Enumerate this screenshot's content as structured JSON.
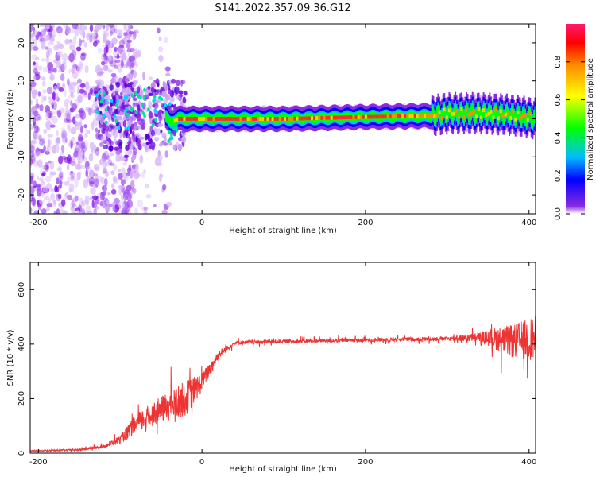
{
  "title": "S141.2022.357.09.36.G12",
  "chart_data": [
    {
      "type": "heatmap",
      "xlabel": "Height of straight line (km)",
      "ylabel": "Frequency (Hz)",
      "xlim": [
        -210,
        408
      ],
      "ylim": [
        -25,
        25
      ],
      "xticks": [
        -200,
        0,
        200,
        400
      ],
      "yticks": [
        -20,
        -10,
        0,
        10,
        20
      ],
      "colorbar": {
        "label": "Normalized spectral amplitude",
        "range": [
          0,
          1
        ],
        "ticks": [
          0.0,
          0.2,
          0.4,
          0.6,
          0.8
        ],
        "colors": [
          "#ffffff",
          "#8a2be2",
          "#0000ff",
          "#00bfff",
          "#00ff00",
          "#ffff00",
          "#ff8c00",
          "#ff0000",
          "#ff1a6e"
        ]
      },
      "frequency_ridge": {
        "x": [
          -130,
          -100,
          -70,
          -50,
          -40,
          -30,
          0,
          100,
          200,
          280,
          300,
          340,
          380,
          408
        ],
        "y": [
          5,
          1,
          3,
          2,
          -1,
          0,
          0,
          0,
          0.5,
          0.8,
          1.5,
          1.5,
          1,
          0
        ]
      }
    },
    {
      "type": "line",
      "xlabel": "Height of straight line (km)",
      "ylabel": "SNR (10 * v/v)",
      "xlim": [
        -210,
        408
      ],
      "ylim": [
        0,
        700
      ],
      "xticks": [
        -200,
        0,
        200,
        400
      ],
      "yticks": [
        0,
        200,
        400,
        600
      ],
      "color": "#ee3333",
      "profile": {
        "x": [
          -210,
          -150,
          -120,
          -100,
          -80,
          -50,
          -20,
          0,
          20,
          40,
          100,
          200,
          300,
          340,
          360,
          380,
          400,
          408
        ],
        "y": [
          8,
          12,
          25,
          50,
          110,
          160,
          200,
          260,
          360,
          405,
          410,
          415,
          420,
          425,
          420,
          410,
          420,
          420
        ],
        "noise": [
          4,
          6,
          10,
          25,
          60,
          80,
          110,
          60,
          25,
          12,
          12,
          12,
          12,
          30,
          70,
          100,
          130,
          140
        ]
      }
    }
  ]
}
